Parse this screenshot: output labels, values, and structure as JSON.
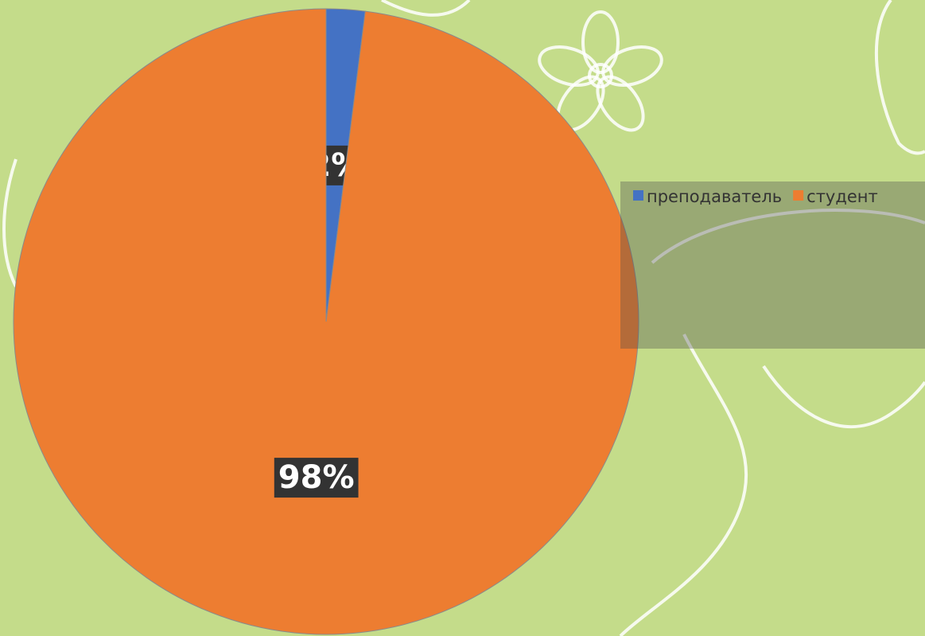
{
  "chart_data": {
    "type": "pie",
    "categories": [
      "преподаватель",
      "студент"
    ],
    "values": [
      2,
      98
    ],
    "value_labels": [
      "2%",
      "98%"
    ],
    "colors": [
      "#4472c4",
      "#ed7d31"
    ],
    "legend": "right"
  }
}
